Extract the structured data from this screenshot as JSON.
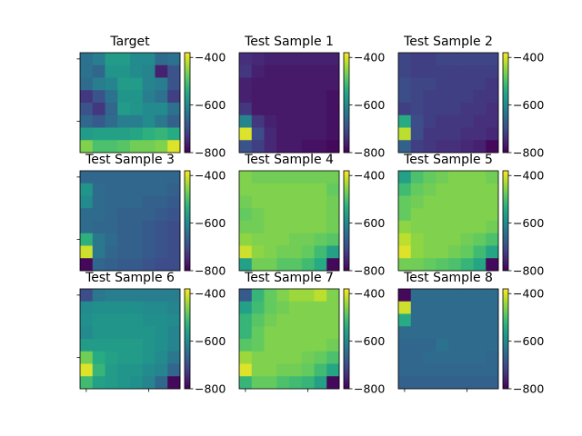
{
  "chart_data": {
    "type": "heatmap",
    "colormap": "viridis",
    "color_limits": [
      -800,
      -380
    ],
    "colorbar_ticks": [
      {
        "value": -400,
        "label": "−400"
      },
      {
        "value": -600,
        "label": "−600"
      },
      {
        "value": -800,
        "label": "−800"
      }
    ],
    "panels": [
      {
        "title": "Target",
        "grid": [
          [
            -640,
            -620,
            -570,
            -570,
            -600,
            -600,
            -650,
            -640
          ],
          [
            -640,
            -660,
            -580,
            -580,
            -600,
            -610,
            -760,
            -690
          ],
          [
            -650,
            -620,
            -610,
            -570,
            -570,
            -610,
            -620,
            -690
          ],
          [
            -730,
            -690,
            -640,
            -580,
            -580,
            -620,
            -640,
            -720
          ],
          [
            -690,
            -730,
            -660,
            -570,
            -580,
            -600,
            -600,
            -640
          ],
          [
            -660,
            -680,
            -650,
            -620,
            -620,
            -600,
            -630,
            -670
          ],
          [
            -570,
            -560,
            -560,
            -560,
            -550,
            -530,
            -520,
            -540
          ],
          [
            -460,
            -500,
            -500,
            -490,
            -470,
            -470,
            -460,
            -400
          ]
        ]
      },
      {
        "title": "Test Sample 1",
        "grid": [
          [
            -740,
            -750,
            -760,
            -760,
            -760,
            -760,
            -760,
            -760
          ],
          [
            -730,
            -760,
            -770,
            -770,
            -770,
            -770,
            -770,
            -770
          ],
          [
            -760,
            -770,
            -770,
            -770,
            -770,
            -770,
            -770,
            -770
          ],
          [
            -760,
            -770,
            -770,
            -770,
            -770,
            -770,
            -770,
            -780
          ],
          [
            -730,
            -770,
            -770,
            -770,
            -770,
            -770,
            -770,
            -780
          ],
          [
            -610,
            -730,
            -760,
            -770,
            -770,
            -770,
            -770,
            -780
          ],
          [
            -400,
            -700,
            -750,
            -770,
            -770,
            -770,
            -770,
            -780
          ],
          [
            -690,
            -720,
            -750,
            -770,
            -770,
            -780,
            -780,
            -790
          ]
        ]
      },
      {
        "title": "Test Sample 2",
        "grid": [
          [
            -710,
            -720,
            -720,
            -710,
            -710,
            -710,
            -710,
            -710
          ],
          [
            -710,
            -720,
            -720,
            -720,
            -720,
            -720,
            -720,
            -720
          ],
          [
            -700,
            -710,
            -710,
            -720,
            -720,
            -720,
            -720,
            -730
          ],
          [
            -700,
            -710,
            -720,
            -720,
            -720,
            -720,
            -730,
            -730
          ],
          [
            -720,
            -710,
            -720,
            -720,
            -720,
            -730,
            -730,
            -740
          ],
          [
            -540,
            -700,
            -720,
            -730,
            -730,
            -730,
            -740,
            -740
          ],
          [
            -420,
            -700,
            -730,
            -730,
            -730,
            -740,
            -740,
            -750
          ],
          [
            -670,
            -720,
            -730,
            -740,
            -740,
            -750,
            -760,
            -790
          ]
        ]
      },
      {
        "title": "Test Sample 3",
        "grid": [
          [
            -660,
            -660,
            -660,
            -660,
            -660,
            -660,
            -660,
            -660
          ],
          [
            -580,
            -650,
            -660,
            -660,
            -660,
            -660,
            -660,
            -670
          ],
          [
            -600,
            -650,
            -660,
            -660,
            -660,
            -670,
            -670,
            -680
          ],
          [
            -650,
            -650,
            -660,
            -670,
            -670,
            -670,
            -680,
            -690
          ],
          [
            -650,
            -660,
            -660,
            -670,
            -670,
            -680,
            -690,
            -700
          ],
          [
            -530,
            -630,
            -650,
            -670,
            -670,
            -680,
            -690,
            -700
          ],
          [
            -410,
            -630,
            -660,
            -670,
            -670,
            -680,
            -690,
            -700
          ],
          [
            -790,
            -660,
            -670,
            -680,
            -680,
            -690,
            -700,
            -700
          ]
        ]
      },
      {
        "title": "Test Sample 4",
        "grid": [
          [
            -460,
            -470,
            -470,
            -470,
            -470,
            -470,
            -470,
            -470
          ],
          [
            -460,
            -460,
            -460,
            -460,
            -460,
            -460,
            -460,
            -480
          ],
          [
            -470,
            -460,
            -460,
            -460,
            -460,
            -460,
            -460,
            -470
          ],
          [
            -480,
            -470,
            -460,
            -460,
            -460,
            -460,
            -460,
            -470
          ],
          [
            -470,
            -470,
            -460,
            -460,
            -460,
            -460,
            -460,
            -470
          ],
          [
            -450,
            -460,
            -460,
            -460,
            -470,
            -470,
            -480,
            -490
          ],
          [
            -410,
            -450,
            -460,
            -470,
            -470,
            -480,
            -510,
            -560
          ],
          [
            -560,
            -470,
            -470,
            -490,
            -490,
            -510,
            -540,
            -790
          ]
        ]
      },
      {
        "title": "Test Sample 5",
        "grid": [
          [
            -560,
            -500,
            -480,
            -470,
            -460,
            -460,
            -460,
            -470
          ],
          [
            -510,
            -480,
            -470,
            -460,
            -460,
            -460,
            -460,
            -460
          ],
          [
            -480,
            -470,
            -460,
            -460,
            -460,
            -460,
            -460,
            -460
          ],
          [
            -480,
            -460,
            -460,
            -460,
            -460,
            -460,
            -460,
            -460
          ],
          [
            -450,
            -460,
            -460,
            -460,
            -460,
            -460,
            -460,
            -470
          ],
          [
            -420,
            -450,
            -460,
            -460,
            -460,
            -470,
            -480,
            -500
          ],
          [
            -400,
            -450,
            -460,
            -460,
            -470,
            -480,
            -510,
            -550
          ],
          [
            -470,
            -470,
            -480,
            -490,
            -500,
            -520,
            -550,
            -790
          ]
        ]
      },
      {
        "title": "Test Sample 6",
        "grid": [
          [
            -700,
            -630,
            -620,
            -620,
            -620,
            -620,
            -620,
            -620
          ],
          [
            -600,
            -590,
            -590,
            -590,
            -590,
            -600,
            -600,
            -610
          ],
          [
            -590,
            -580,
            -580,
            -580,
            -580,
            -590,
            -590,
            -600
          ],
          [
            -600,
            -580,
            -580,
            -580,
            -580,
            -580,
            -590,
            -610
          ],
          [
            -570,
            -570,
            -570,
            -570,
            -570,
            -580,
            -590,
            -610
          ],
          [
            -470,
            -540,
            -560,
            -570,
            -570,
            -580,
            -600,
            -630
          ],
          [
            -400,
            -520,
            -570,
            -580,
            -580,
            -600,
            -610,
            -660
          ],
          [
            -510,
            -560,
            -570,
            -580,
            -590,
            -610,
            -660,
            -790
          ]
        ]
      },
      {
        "title": "Test Sample 7",
        "grid": [
          [
            -680,
            -520,
            -480,
            -460,
            -440,
            -440,
            -420,
            -460
          ],
          [
            -560,
            -510,
            -480,
            -470,
            -460,
            -460,
            -460,
            -460
          ],
          [
            -520,
            -490,
            -470,
            -460,
            -460,
            -460,
            -460,
            -460
          ],
          [
            -520,
            -480,
            -460,
            -460,
            -460,
            -460,
            -460,
            -460
          ],
          [
            -490,
            -480,
            -460,
            -460,
            -460,
            -460,
            -460,
            -470
          ],
          [
            -440,
            -460,
            -460,
            -460,
            -460,
            -470,
            -480,
            -500
          ],
          [
            -400,
            -460,
            -460,
            -470,
            -470,
            -480,
            -510,
            -550
          ],
          [
            -520,
            -480,
            -480,
            -500,
            -510,
            -520,
            -560,
            -790
          ]
        ]
      },
      {
        "title": "Test Sample 8",
        "grid": [
          [
            -790,
            -650,
            -650,
            -650,
            -650,
            -650,
            -650,
            -650
          ],
          [
            -410,
            -650,
            -650,
            -650,
            -650,
            -650,
            -650,
            -650
          ],
          [
            -540,
            -650,
            -650,
            -650,
            -650,
            -650,
            -650,
            -650
          ],
          [
            -650,
            -650,
            -650,
            -650,
            -650,
            -650,
            -650,
            -650
          ],
          [
            -660,
            -660,
            -660,
            -640,
            -650,
            -650,
            -650,
            -650
          ],
          [
            -660,
            -660,
            -650,
            -650,
            -650,
            -650,
            -650,
            -660
          ],
          [
            -660,
            -660,
            -660,
            -660,
            -660,
            -660,
            -660,
            -660
          ],
          [
            -670,
            -670,
            -670,
            -670,
            -670,
            -670,
            -670,
            -670
          ]
        ]
      }
    ]
  }
}
